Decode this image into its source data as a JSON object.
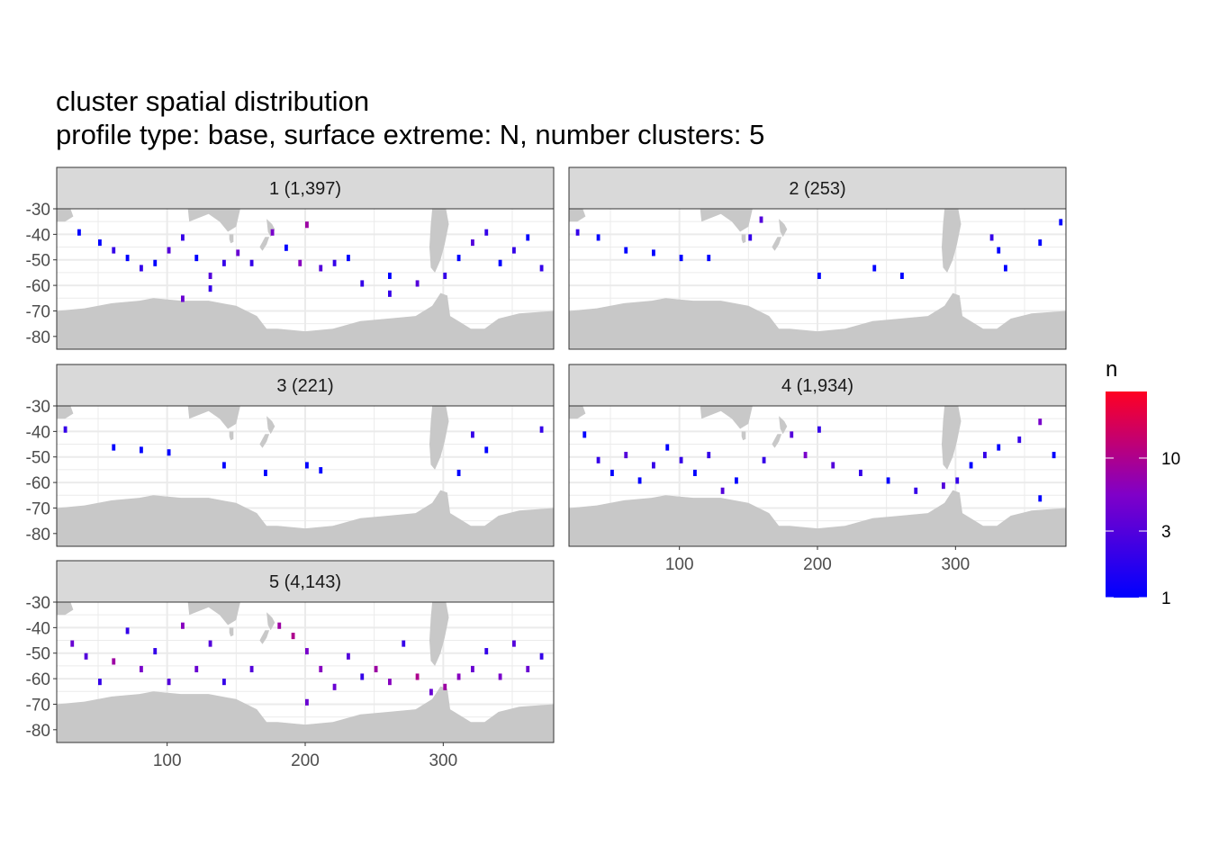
{
  "page_title": "cluster spatial distribution",
  "page_subtitle": "profile type: base, surface extreme: N, number clusters: 5",
  "colors": {
    "low": "#0000ff",
    "high": "#ff0022",
    "land": "#c8c8c8",
    "strip": "#d9d9d9",
    "grid": "#ebebeb"
  },
  "chart_data": {
    "type": "heatmap",
    "title": "cluster spatial distribution",
    "subtitle": "profile type: base, surface extreme: N, number clusters: 5",
    "xlabel": "",
    "ylabel": "",
    "xlim": [
      20,
      380
    ],
    "ylim": [
      -85,
      -30
    ],
    "x_ticks": [
      100,
      200,
      300
    ],
    "x_tick_labels": [
      "100",
      "200",
      "300"
    ],
    "y_ticks": [
      -30,
      -40,
      -50,
      -60,
      -70,
      -80
    ],
    "y_tick_labels": [
      "-30",
      "-40",
      "-50",
      "-60",
      "-70",
      "-80"
    ],
    "grid": true,
    "legend": {
      "title": "n",
      "position": "right",
      "scale": "log",
      "range": [
        1,
        30
      ],
      "ticks": [
        1,
        3,
        10
      ],
      "tick_labels": [
        "1",
        "3",
        "10"
      ]
    },
    "panels": [
      {
        "label": "1 (1,397)",
        "cluster": 1,
        "count": 1397
      },
      {
        "label": "2 (253)",
        "cluster": 2,
        "count": 253
      },
      {
        "label": "3 (221)",
        "cluster": 3,
        "count": 221
      },
      {
        "label": "4 (1,934)",
        "cluster": 4,
        "count": 1934
      },
      {
        "label": "5 (4,143)",
        "cluster": 5,
        "count": 4143
      }
    ],
    "land_masks": [
      {
        "name": "south-america",
        "polygon": [
          [
            292,
            -30
          ],
          [
            302,
            -30
          ],
          [
            304,
            -36
          ],
          [
            301,
            -44
          ],
          [
            298,
            -50
          ],
          [
            294,
            -55
          ],
          [
            291,
            -53
          ],
          [
            290,
            -45
          ],
          [
            291,
            -36
          ]
        ]
      },
      {
        "name": "africa",
        "polygon": [
          [
            12,
            -30
          ],
          [
            30,
            -30
          ],
          [
            32,
            -33
          ],
          [
            26,
            -35
          ],
          [
            20,
            -35
          ],
          [
            16,
            -32
          ]
        ]
      },
      {
        "name": "australia",
        "polygon": [
          [
            115,
            -30
          ],
          [
            153,
            -30
          ],
          [
            150,
            -37
          ],
          [
            144,
            -39
          ],
          [
            138,
            -35
          ],
          [
            130,
            -32
          ],
          [
            116,
            -35
          ]
        ]
      },
      {
        "name": "tasmania",
        "polygon": [
          [
            145,
            -40
          ],
          [
            148,
            -40
          ],
          [
            148,
            -43
          ],
          [
            146,
            -43.5
          ],
          [
            145,
            -42
          ]
        ]
      },
      {
        "name": "new-zealand-north",
        "polygon": [
          [
            172,
            -34
          ],
          [
            176,
            -36
          ],
          [
            178,
            -38
          ],
          [
            175,
            -41
          ],
          [
            173,
            -39
          ]
        ]
      },
      {
        "name": "new-zealand-south",
        "polygon": [
          [
            167,
            -45
          ],
          [
            171,
            -41
          ],
          [
            174,
            -41
          ],
          [
            172,
            -44
          ],
          [
            169,
            -46.5
          ]
        ]
      },
      {
        "name": "madagascar",
        "polygon": [
          [
            44,
            -25
          ],
          [
            48,
            -25
          ],
          [
            47,
            -26
          ]
        ]
      },
      {
        "name": "antarctica",
        "polygon": [
          [
            20,
            -70
          ],
          [
            40,
            -69
          ],
          [
            60,
            -67
          ],
          [
            80,
            -66
          ],
          [
            90,
            -65
          ],
          [
            110,
            -66
          ],
          [
            130,
            -66
          ],
          [
            150,
            -68
          ],
          [
            165,
            -72
          ],
          [
            172,
            -77
          ],
          [
            180,
            -77
          ],
          [
            200,
            -78
          ],
          [
            220,
            -77
          ],
          [
            240,
            -74
          ],
          [
            260,
            -73
          ],
          [
            280,
            -72
          ],
          [
            292,
            -68
          ],
          [
            298,
            -63
          ],
          [
            303,
            -64
          ],
          [
            305,
            -72
          ],
          [
            320,
            -77
          ],
          [
            330,
            -77
          ],
          [
            340,
            -73
          ],
          [
            355,
            -71
          ],
          [
            380,
            -70
          ],
          [
            380,
            -90
          ],
          [
            20,
            -90
          ]
        ]
      }
    ],
    "series": [
      {
        "cluster": 1,
        "cells": [
          [
            35,
            -38,
            1
          ],
          [
            50,
            -42,
            1
          ],
          [
            60,
            -45,
            2
          ],
          [
            70,
            -48,
            1
          ],
          [
            80,
            -52,
            2
          ],
          [
            90,
            -50,
            1
          ],
          [
            100,
            -45,
            3
          ],
          [
            110,
            -40,
            2
          ],
          [
            120,
            -48,
            1
          ],
          [
            130,
            -55,
            3
          ],
          [
            140,
            -50,
            2
          ],
          [
            150,
            -46,
            4
          ],
          [
            160,
            -50,
            2
          ],
          [
            175,
            -38,
            5
          ],
          [
            185,
            -44,
            1
          ],
          [
            195,
            -50,
            6
          ],
          [
            210,
            -52,
            3
          ],
          [
            220,
            -50,
            2
          ],
          [
            230,
            -48,
            1
          ],
          [
            240,
            -58,
            2
          ],
          [
            260,
            -55,
            1
          ],
          [
            280,
            -58,
            3
          ],
          [
            300,
            -55,
            2
          ],
          [
            310,
            -48,
            1
          ],
          [
            320,
            -42,
            3
          ],
          [
            330,
            -38,
            2
          ],
          [
            340,
            -50,
            1
          ],
          [
            350,
            -45,
            2
          ],
          [
            360,
            -40,
            1
          ],
          [
            370,
            -52,
            2
          ],
          [
            110,
            -64,
            4
          ],
          [
            130,
            -60,
            2
          ],
          [
            200,
            -35,
            8
          ],
          [
            260,
            -62,
            2
          ]
        ]
      },
      {
        "cluster": 2,
        "cells": [
          [
            25,
            -38,
            2
          ],
          [
            40,
            -40,
            1
          ],
          [
            60,
            -45,
            1
          ],
          [
            80,
            -46,
            1
          ],
          [
            100,
            -48,
            1
          ],
          [
            120,
            -48,
            1
          ],
          [
            150,
            -40,
            2
          ],
          [
            158,
            -33,
            3
          ],
          [
            200,
            -55,
            1
          ],
          [
            240,
            -52,
            1
          ],
          [
            260,
            -55,
            1
          ],
          [
            325,
            -40,
            2
          ],
          [
            330,
            -45,
            1
          ],
          [
            335,
            -52,
            1
          ],
          [
            360,
            -42,
            1
          ],
          [
            375,
            -34,
            1
          ]
        ]
      },
      {
        "cluster": 3,
        "cells": [
          [
            25,
            -38,
            2
          ],
          [
            60,
            -45,
            1
          ],
          [
            80,
            -46,
            1
          ],
          [
            100,
            -47,
            1
          ],
          [
            140,
            -52,
            1
          ],
          [
            170,
            -55,
            1
          ],
          [
            200,
            -52,
            1
          ],
          [
            210,
            -54,
            1
          ],
          [
            320,
            -40,
            2
          ],
          [
            330,
            -46,
            1
          ],
          [
            310,
            -55,
            1
          ],
          [
            370,
            -38,
            2
          ]
        ]
      },
      {
        "cluster": 4,
        "cells": [
          [
            30,
            -40,
            1
          ],
          [
            40,
            -50,
            2
          ],
          [
            50,
            -55,
            1
          ],
          [
            60,
            -48,
            3
          ],
          [
            70,
            -58,
            1
          ],
          [
            80,
            -52,
            2
          ],
          [
            90,
            -45,
            1
          ],
          [
            100,
            -50,
            2
          ],
          [
            110,
            -55,
            1
          ],
          [
            120,
            -48,
            2
          ],
          [
            130,
            -62,
            3
          ],
          [
            140,
            -58,
            1
          ],
          [
            160,
            -50,
            2
          ],
          [
            180,
            -40,
            3
          ],
          [
            190,
            -48,
            5
          ],
          [
            200,
            -38,
            2
          ],
          [
            210,
            -52,
            3
          ],
          [
            230,
            -55,
            2
          ],
          [
            250,
            -58,
            1
          ],
          [
            270,
            -62,
            2
          ],
          [
            290,
            -60,
            3
          ],
          [
            300,
            -58,
            2
          ],
          [
            310,
            -52,
            1
          ],
          [
            320,
            -48,
            2
          ],
          [
            330,
            -45,
            1
          ],
          [
            345,
            -42,
            2
          ],
          [
            360,
            -35,
            5
          ],
          [
            370,
            -48,
            1
          ],
          [
            360,
            -65,
            1
          ]
        ]
      },
      {
        "cluster": 5,
        "cells": [
          [
            30,
            -45,
            4
          ],
          [
            40,
            -50,
            3
          ],
          [
            50,
            -60,
            2
          ],
          [
            60,
            -52,
            8
          ],
          [
            70,
            -40,
            2
          ],
          [
            80,
            -55,
            5
          ],
          [
            90,
            -48,
            2
          ],
          [
            100,
            -60,
            3
          ],
          [
            110,
            -38,
            6
          ],
          [
            120,
            -55,
            4
          ],
          [
            130,
            -45,
            3
          ],
          [
            140,
            -60,
            2
          ],
          [
            160,
            -55,
            3
          ],
          [
            180,
            -38,
            8
          ],
          [
            190,
            -42,
            10
          ],
          [
            200,
            -48,
            5
          ],
          [
            210,
            -55,
            6
          ],
          [
            220,
            -62,
            4
          ],
          [
            230,
            -50,
            3
          ],
          [
            240,
            -58,
            2
          ],
          [
            250,
            -55,
            8
          ],
          [
            260,
            -60,
            6
          ],
          [
            270,
            -45,
            2
          ],
          [
            280,
            -58,
            10
          ],
          [
            290,
            -64,
            4
          ],
          [
            300,
            -62,
            8
          ],
          [
            310,
            -58,
            6
          ],
          [
            320,
            -55,
            4
          ],
          [
            330,
            -48,
            2
          ],
          [
            340,
            -58,
            5
          ],
          [
            350,
            -45,
            3
          ],
          [
            360,
            -55,
            4
          ],
          [
            370,
            -50,
            2
          ],
          [
            200,
            -68,
            4
          ]
        ]
      }
    ]
  }
}
